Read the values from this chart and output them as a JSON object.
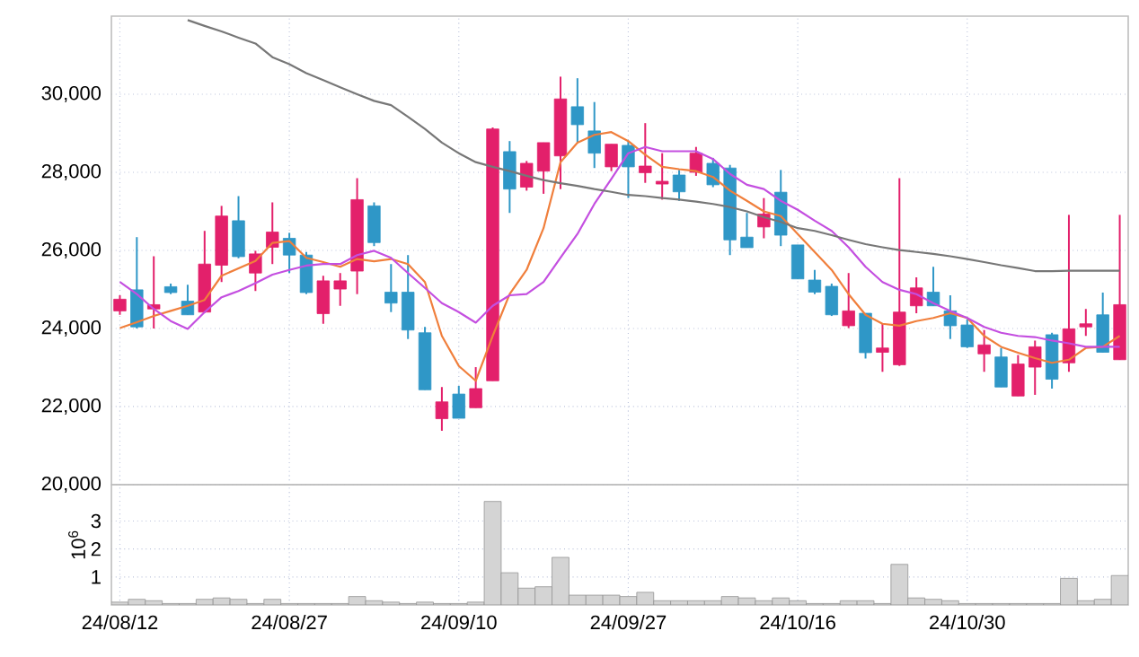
{
  "chart_data": [
    {
      "type": "candlestick",
      "categories": [
        null,
        null,
        null,
        null,
        null,
        null,
        null,
        null,
        null,
        null,
        null,
        null,
        null,
        null,
        null,
        null,
        null,
        null,
        null,
        null,
        null,
        null,
        null,
        null,
        null,
        null,
        null,
        null,
        null,
        null,
        null,
        null,
        null,
        null,
        null,
        null,
        null,
        null,
        null,
        null,
        null,
        null,
        null,
        null,
        null,
        null,
        null,
        null,
        null,
        null,
        null,
        null,
        null,
        null,
        null,
        null,
        null,
        null,
        null,
        null
      ],
      "ohlc": [
        [
          24450,
          24850,
          24350,
          24750
        ],
        [
          24990,
          26340,
          24000,
          24040
        ],
        [
          24500,
          25850,
          24000,
          24610
        ],
        [
          25070,
          25150,
          24880,
          24920
        ],
        [
          24700,
          25120,
          24350,
          24350
        ],
        [
          24420,
          26500,
          24400,
          25650
        ],
        [
          25620,
          27140,
          25190,
          26880
        ],
        [
          26760,
          27390,
          25800,
          25840
        ],
        [
          25420,
          25990,
          24960,
          25910
        ],
        [
          26080,
          27230,
          25650,
          26470
        ],
        [
          26310,
          26450,
          25420,
          25880
        ],
        [
          25880,
          25960,
          24880,
          24920
        ],
        [
          24380,
          25350,
          24120,
          25220
        ],
        [
          25010,
          25420,
          24580,
          25220
        ],
        [
          25470,
          27850,
          24880,
          27300
        ],
        [
          27140,
          27230,
          26110,
          26200
        ],
        [
          24930,
          25650,
          24420,
          24650
        ],
        [
          24930,
          25880,
          23730,
          23960
        ],
        [
          23890,
          24040,
          22430,
          22430
        ],
        [
          21690,
          22500,
          21380,
          22120
        ],
        [
          22320,
          22530,
          21700,
          21700
        ],
        [
          21970,
          23010,
          21970,
          22460
        ],
        [
          22660,
          29150,
          22660,
          29110
        ],
        [
          28530,
          28800,
          26960,
          27570
        ],
        [
          27620,
          28290,
          27530,
          28230
        ],
        [
          28030,
          28760,
          27450,
          28760
        ],
        [
          28420,
          30450,
          27570,
          29880
        ],
        [
          29680,
          30410,
          28760,
          29220
        ],
        [
          29060,
          29800,
          28110,
          28490
        ],
        [
          28140,
          28720,
          28030,
          28720
        ],
        [
          28690,
          28800,
          27340,
          28140
        ],
        [
          27990,
          29260,
          27730,
          28160
        ],
        [
          27700,
          28490,
          27300,
          27770
        ],
        [
          27930,
          28060,
          27270,
          27500
        ],
        [
          28000,
          28650,
          27910,
          28490
        ],
        [
          28230,
          28370,
          27620,
          27680
        ],
        [
          28110,
          28190,
          25880,
          26270
        ],
        [
          26340,
          26960,
          26070,
          26070
        ],
        [
          26600,
          27340,
          26310,
          26930
        ],
        [
          27490,
          28060,
          26110,
          26390
        ],
        [
          26140,
          26140,
          25270,
          25270
        ],
        [
          25240,
          25500,
          24880,
          24930
        ],
        [
          25080,
          25150,
          24320,
          24350
        ],
        [
          24070,
          25420,
          24010,
          24450
        ],
        [
          24390,
          24390,
          23230,
          23380
        ],
        [
          23390,
          24120,
          22890,
          23500
        ],
        [
          23070,
          27850,
          23040,
          24420
        ],
        [
          24580,
          25310,
          24390,
          25040
        ],
        [
          24930,
          25580,
          24580,
          24580
        ],
        [
          24450,
          24850,
          23730,
          24070
        ],
        [
          24090,
          24240,
          23500,
          23530
        ],
        [
          23350,
          23960,
          22890,
          23580
        ],
        [
          23270,
          23500,
          22500,
          22500
        ],
        [
          22270,
          23320,
          22270,
          23090
        ],
        [
          23010,
          23690,
          22300,
          23530
        ],
        [
          23840,
          23890,
          22460,
          22700
        ],
        [
          23120,
          26910,
          22890,
          23990
        ],
        [
          24040,
          24500,
          23810,
          24120
        ],
        [
          24350,
          24920,
          23390,
          23390
        ],
        [
          23200,
          26910,
          23200,
          24610
        ]
      ],
      "colors": [
        "#e3206b",
        "#2f97c7",
        "#e3206b",
        "#2f97c7",
        "#2f97c7",
        "#e3206b",
        "#e3206b",
        "#2f97c7",
        "#e3206b",
        "#e3206b",
        "#2f97c7",
        "#2f97c7",
        "#e3206b",
        "#e3206b",
        "#e3206b",
        "#2f97c7",
        "#2f97c7",
        "#2f97c7",
        "#2f97c7",
        "#e3206b",
        "#2f97c7",
        "#e3206b",
        "#e3206b",
        "#2f97c7",
        "#e3206b",
        "#e3206b",
        "#e3206b",
        "#2f97c7",
        "#2f97c7",
        "#e3206b",
        "#2f97c7",
        "#e3206b",
        "#e3206b",
        "#2f97c7",
        "#e3206b",
        "#2f97c7",
        "#2f97c7",
        "#2f97c7",
        "#e3206b",
        "#2f97c7",
        "#2f97c7",
        "#2f97c7",
        "#2f97c7",
        "#e3206b",
        "#2f97c7",
        "#e3206b",
        "#e3206b",
        "#e3206b",
        "#2f97c7",
        "#2f97c7",
        "#2f97c7",
        "#e3206b",
        "#2f97c7",
        "#e3206b",
        "#e3206b",
        "#2f97c7",
        "#e3206b",
        "#e3206b",
        "#2f97c7",
        "#e3206b"
      ],
      "series": [
        {
          "type": "line",
          "color": "#f07f3c",
          "values": [
            24010,
            24160,
            24320,
            24450,
            24580,
            24730,
            25350,
            25540,
            25730,
            26190,
            26240,
            25810,
            25700,
            25580,
            25780,
            25720,
            25780,
            25650,
            25190,
            23810,
            23040,
            22660,
            23810,
            24880,
            25500,
            26570,
            28260,
            28760,
            28960,
            29030,
            28800,
            28450,
            28140,
            28080,
            28030,
            27880,
            27530,
            27270,
            27000,
            26880,
            26420,
            25960,
            25500,
            24880,
            24350,
            24120,
            24070,
            24190,
            24270,
            24390,
            24270,
            23810,
            23530,
            23380,
            23240,
            23120,
            23200,
            23500,
            23530,
            23810
          ]
        },
        {
          "type": "line",
          "color": "#c44fe0",
          "values": [
            25190,
            24880,
            24500,
            24190,
            23990,
            24420,
            24800,
            24960,
            25160,
            25380,
            25500,
            25610,
            25650,
            25650,
            25880,
            25990,
            25810,
            25420,
            25040,
            24650,
            24420,
            24150,
            24580,
            24850,
            24880,
            25190,
            25810,
            26420,
            27190,
            27830,
            28490,
            28650,
            28540,
            28540,
            28540,
            28340,
            27960,
            27680,
            27570,
            27270,
            27040,
            26760,
            26500,
            26080,
            25580,
            25190,
            24990,
            24880,
            24650,
            24450,
            24270,
            24040,
            23890,
            23810,
            23780,
            23690,
            23620,
            23530,
            23530,
            23530
          ]
        },
        {
          "type": "line",
          "color": "#777777",
          "values": [
            null,
            null,
            null,
            null,
            31900,
            31750,
            31610,
            31450,
            31300,
            30950,
            30770,
            30540,
            30360,
            30180,
            30000,
            29830,
            29720,
            29420,
            29110,
            28760,
            28490,
            28260,
            28140,
            28030,
            27910,
            27800,
            27720,
            27650,
            27570,
            27500,
            27420,
            27390,
            27340,
            27300,
            27250,
            27190,
            27110,
            27000,
            26850,
            26730,
            26570,
            26500,
            26390,
            26270,
            26160,
            26080,
            26010,
            25960,
            25910,
            25850,
            25780,
            25700,
            25620,
            25550,
            25470,
            25470,
            25480,
            25480,
            25480,
            25480
          ]
        }
      ],
      "ylim": [
        20000,
        32000
      ],
      "yticks": [
        {
          "value": 20000,
          "label": "20,000"
        },
        {
          "value": 22000,
          "label": "22,000"
        },
        {
          "value": 24000,
          "label": "24,000"
        },
        {
          "value": 26000,
          "label": "26,000"
        },
        {
          "value": 28000,
          "label": "28,000"
        },
        {
          "value": 30000,
          "label": "30,000"
        }
      ],
      "grid": true,
      "tick_labels": "y"
    },
    {
      "type": "bar",
      "categories": [
        "24/08/12",
        null,
        null,
        null,
        null,
        null,
        null,
        null,
        null,
        null,
        "24/08/27",
        null,
        null,
        null,
        null,
        null,
        null,
        null,
        null,
        null,
        "24/09/10",
        null,
        null,
        null,
        null,
        null,
        null,
        null,
        null,
        null,
        "24/09/27",
        null,
        null,
        null,
        null,
        null,
        null,
        null,
        null,
        null,
        "24/10/16",
        null,
        null,
        null,
        null,
        null,
        null,
        null,
        null,
        null,
        "24/10/30",
        null,
        null,
        null,
        null,
        null,
        null,
        null,
        null,
        null
      ],
      "values": [
        0.1,
        0.2,
        0.15,
        0.05,
        0.05,
        0.2,
        0.25,
        0.2,
        0.05,
        0.2,
        0.05,
        0.05,
        0.05,
        0.05,
        0.3,
        0.15,
        0.1,
        0.05,
        0.1,
        0.05,
        0.05,
        0.1,
        3.7,
        1.15,
        0.6,
        0.65,
        1.7,
        0.35,
        0.35,
        0.35,
        0.3,
        0.45,
        0.15,
        0.15,
        0.15,
        0.15,
        0.3,
        0.25,
        0.15,
        0.25,
        0.15,
        0.05,
        0.05,
        0.15,
        0.15,
        0.05,
        1.45,
        0.25,
        0.2,
        0.15,
        0.05,
        0.05,
        0.05,
        0.05,
        0.05,
        0.05,
        0.95,
        0.15,
        0.2,
        1.05
      ],
      "color": "#d4d4d4",
      "ylabel": "10$^{6}$",
      "ylim": [
        0,
        4.3
      ],
      "yticks": [
        1,
        2,
        3
      ],
      "grid": true
    }
  ]
}
